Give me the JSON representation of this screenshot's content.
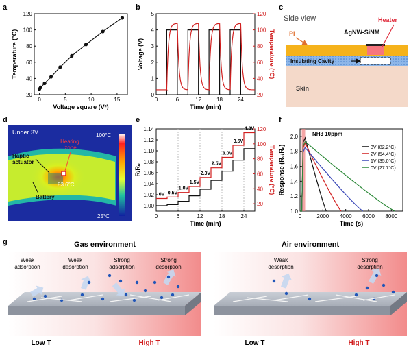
{
  "panels": {
    "a": {
      "letter": "a",
      "chart_data": {
        "type": "line",
        "title": "",
        "xlabel": "Voltage square  (V²)",
        "ylabel": "Temperature (°C)",
        "xlim": [
          -1,
          17
        ],
        "ylim": [
          20,
          120
        ],
        "xticks": [
          0,
          5,
          10,
          15
        ],
        "yticks": [
          20,
          40,
          60,
          80,
          100,
          120
        ],
        "x": [
          0,
          0.25,
          1,
          2.25,
          4,
          6.25,
          9,
          12.25,
          16
        ],
        "y": [
          27,
          29,
          34,
          42,
          54,
          68,
          82,
          98,
          115
        ]
      }
    },
    "b": {
      "letter": "b",
      "chart_data": {
        "type": "line",
        "xlabel": "Time (min)",
        "ylabel": "Voltage (V)",
        "ylabel_right": "Temperature (°C)",
        "xlim": [
          0,
          28
        ],
        "ylim": [
          0,
          5
        ],
        "ylim_right": [
          20,
          120
        ],
        "xticks": [
          0,
          6,
          12,
          18,
          24
        ],
        "yticks": [
          0,
          1,
          2,
          3,
          4,
          5
        ],
        "yticks_right": [
          20,
          40,
          60,
          80,
          100,
          120
        ],
        "series": [
          {
            "name": "Voltage",
            "color": "#111111",
            "x": [
              0,
              3,
              3,
              6,
              6,
              9,
              9,
              12,
              12,
              15,
              15,
              18,
              18,
              21,
              21,
              24,
              24,
              28
            ],
            "y": [
              0,
              0,
              4,
              4,
              0,
              0,
              4,
              4,
              0,
              0,
              4,
              4,
              0,
              0,
              4,
              4,
              0,
              0
            ]
          },
          {
            "name": "Temperature",
            "color": "#d11f1f",
            "axis": "right",
            "cycles_on": [
              3,
              9,
              15,
              21
            ],
            "on_minutes": 3,
            "period_minutes": 6,
            "base": 26,
            "peak": 108
          }
        ]
      }
    },
    "c": {
      "letter": "c",
      "title": "Side view",
      "labels": {
        "heater": "Heater",
        "agnw": "AgNW-SiNM",
        "pi": "PI",
        "cavity": "Insulating Cavity",
        "skin": "Skin"
      }
    },
    "d": {
      "letter": "d",
      "caption": "Under 3V",
      "scale_max": "100°C",
      "scale_min": "25°C",
      "labels": {
        "heating_zone": "Heating\nzone",
        "haptic": "Haptic\nactuator",
        "battery": "Battery",
        "temp": "83.6°C"
      }
    },
    "e": {
      "letter": "e",
      "chart_data": {
        "type": "line",
        "xlabel": "Time (min)",
        "ylabel": "R/Rₒ",
        "ylabel_right": "Temperature (°C)",
        "xlim": [
          0,
          27
        ],
        "ylim": [
          0.99,
          1.14
        ],
        "ylim_right": [
          10,
          120
        ],
        "xticks": [
          0,
          6,
          12,
          18,
          24
        ],
        "yticks": [
          1.0,
          1.02,
          1.04,
          1.06,
          1.08,
          1.1,
          1.12,
          1.14
        ],
        "yticks_right": [
          20,
          40,
          60,
          80,
          100,
          120
        ],
        "step_labels": [
          "0V",
          "0.5V",
          "1.0V",
          "1.5V",
          "2.0V",
          "2.5V",
          "3.0V",
          "3.5V",
          "4.0V"
        ],
        "series": [
          {
            "name": "R/Ro",
            "color": "#111111",
            "steps_x": [
              0,
              3,
              6,
              9,
              12,
              15,
              18,
              21,
              24,
              27
            ],
            "steps_y": [
              1.0,
              1.002,
              1.008,
              1.018,
              1.03,
              1.046,
              1.063,
              1.083,
              1.104
            ]
          },
          {
            "name": "Temperature",
            "color": "#d11f1f",
            "axis": "right",
            "steps_x": [
              0,
              3,
              6,
              9,
              12,
              15,
              18,
              21,
              24,
              27
            ],
            "steps_y": [
              27,
              29,
              35,
              43,
              55,
              68,
              82,
              98,
              115
            ]
          }
        ]
      }
    },
    "f": {
      "letter": "f",
      "chart_data": {
        "type": "line",
        "title": "NH3 10ppm",
        "xlabel": "Time (s)",
        "ylabel": "Response (R₉/Rₐ)",
        "xlim": [
          0,
          9000
        ],
        "ylim": [
          1.0,
          2.1
        ],
        "xticks": [
          0,
          2000,
          4000,
          6000,
          8000
        ],
        "yticks": [
          1.0,
          1.2,
          1.4,
          1.6,
          1.8,
          2.0
        ],
        "exposure_window_s": [
          150,
          450
        ],
        "series": [
          {
            "name": "3V (82.2°C)",
            "color": "#111111",
            "peak": 1.98,
            "recovery_end_s": 2300
          },
          {
            "name": "2V (54.4°C)",
            "color": "#d11f1f",
            "peak": 1.91,
            "recovery_end_s": 3600
          },
          {
            "name": "1V (35.0°C)",
            "color": "#3a48b8",
            "peak": 1.85,
            "recovery_end_s": 5500
          },
          {
            "name": "0V (27.7°C)",
            "color": "#2e8a3a",
            "peak": 1.93,
            "recovery_end_s": 8300
          }
        ]
      }
    },
    "g": {
      "letter": "g",
      "gas_title": "Gas environment",
      "air_title": "Air environment",
      "gas_labels": [
        "Weak\nadsorption",
        "Weak\ndesorption",
        "Strong\nadsorption",
        "Strong\ndesorption"
      ],
      "air_labels": [
        "Weak\ndesorption",
        "Strong\ndesorption"
      ],
      "low_t": "Low T",
      "high_t": "High T"
    }
  },
  "colors": {
    "red": "#d11f1f",
    "dark": "#111111",
    "blue": "#3a48b8",
    "green": "#2e8a3a"
  }
}
